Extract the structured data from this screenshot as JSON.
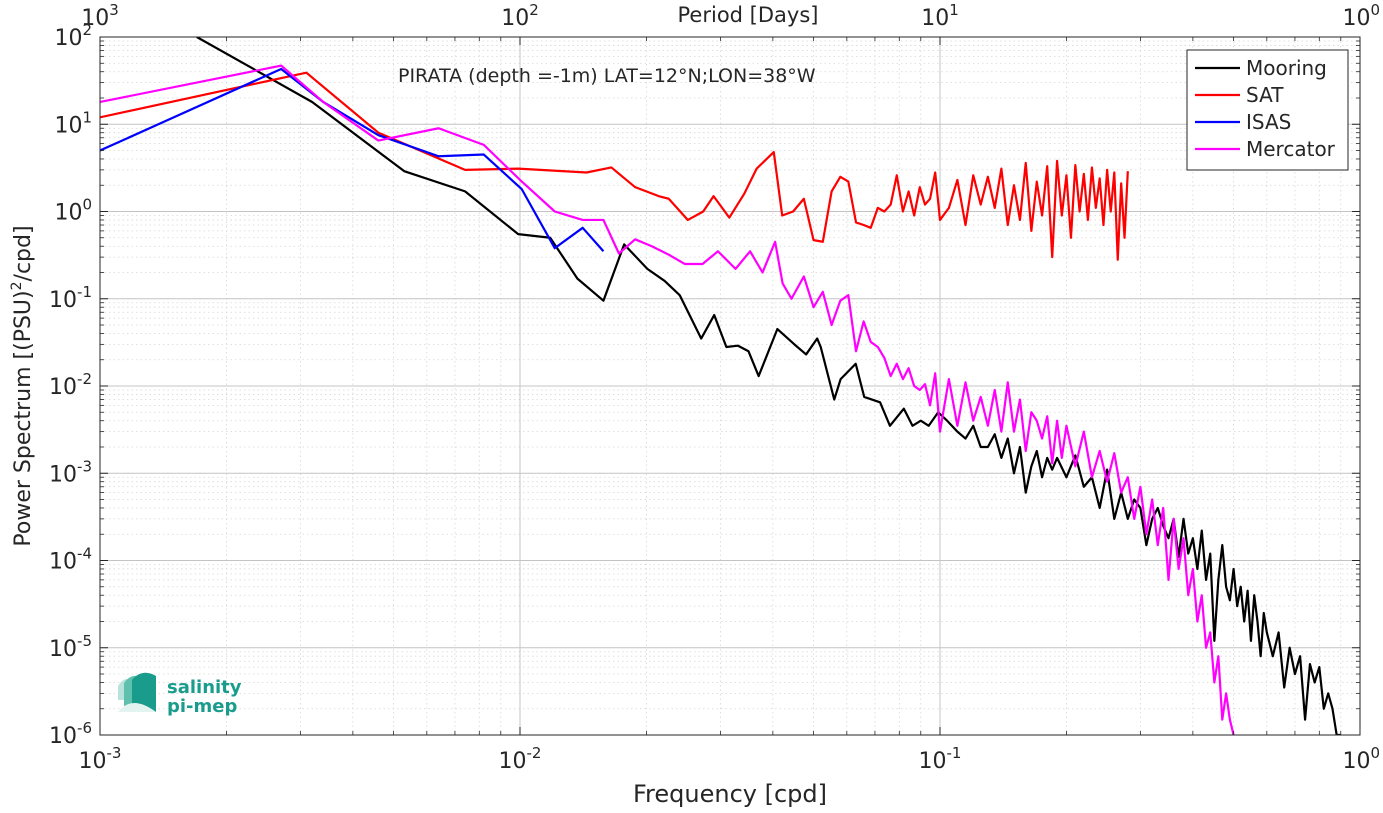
{
  "chart_data": {
    "type": "line",
    "title": "PIRATA (depth =-1m) LAT=12°N;LON=38°W",
    "xlabel": "Frequency [cpd]",
    "ylabel_main": "Power Spectrum [(PSU)",
    "ylabel_sup": "2",
    "ylabel_tail": "/cpd]",
    "top_xlabel": "Period [Days]",
    "x_scale": "log",
    "y_scale": "log",
    "xlim": [
      0.001,
      1
    ],
    "ylim": [
      1e-06,
      100
    ],
    "grid": true,
    "legend_position": "top-right",
    "x_ticks": [
      {
        "value": 0.001,
        "base": "10",
        "exp": "-3"
      },
      {
        "value": 0.01,
        "base": "10",
        "exp": "-2"
      },
      {
        "value": 0.1,
        "base": "10",
        "exp": "-1"
      },
      {
        "value": 1,
        "base": "10",
        "exp": "0"
      }
    ],
    "top_ticks": [
      {
        "frequency": 0.001,
        "base": "10",
        "exp": "3"
      },
      {
        "frequency": 0.01,
        "base": "10",
        "exp": "2"
      },
      {
        "frequency": 0.1,
        "base": "10",
        "exp": "1"
      },
      {
        "frequency": 1,
        "base": "10",
        "exp": "0"
      }
    ],
    "y_ticks": [
      {
        "value": 100,
        "base": "10",
        "exp": "2"
      },
      {
        "value": 10,
        "base": "10",
        "exp": "1"
      },
      {
        "value": 1,
        "base": "10",
        "exp": "0"
      },
      {
        "value": 0.1,
        "base": "10",
        "exp": "-1"
      },
      {
        "value": 0.01,
        "base": "10",
        "exp": "-2"
      },
      {
        "value": 0.001,
        "base": "10",
        "exp": "-3"
      },
      {
        "value": 0.0001,
        "base": "10",
        "exp": "-4"
      },
      {
        "value": 1e-05,
        "base": "10",
        "exp": "-5"
      },
      {
        "value": 1e-06,
        "base": "10",
        "exp": "-6"
      }
    ],
    "series": [
      {
        "name": "Mooring",
        "color": "#000000",
        "x": [
          0.0017,
          0.0032,
          0.0053,
          0.0074,
          0.0099,
          0.0118,
          0.0137,
          0.0158,
          0.0177,
          0.0201,
          0.0221,
          0.024,
          0.027,
          0.029,
          0.031,
          0.033,
          0.035,
          0.037,
          0.041,
          0.045,
          0.048,
          0.051,
          0.052,
          0.056,
          0.058,
          0.063,
          0.066,
          0.072,
          0.076,
          0.082,
          0.086,
          0.09,
          0.094,
          0.099,
          0.104,
          0.11,
          0.115,
          0.12,
          0.125,
          0.13,
          0.135,
          0.14,
          0.145,
          0.15,
          0.155,
          0.16,
          0.165,
          0.17,
          0.175,
          0.18,
          0.185,
          0.19,
          0.2,
          0.21,
          0.22,
          0.23,
          0.24,
          0.25,
          0.26,
          0.27,
          0.28,
          0.29,
          0.3,
          0.31,
          0.32,
          0.33,
          0.34,
          0.35,
          0.36,
          0.37,
          0.38,
          0.39,
          0.4,
          0.41,
          0.42,
          0.43,
          0.44,
          0.45,
          0.46,
          0.47,
          0.48,
          0.49,
          0.5,
          0.51,
          0.52,
          0.53,
          0.54,
          0.55,
          0.56,
          0.57,
          0.58,
          0.59,
          0.6,
          0.62,
          0.64,
          0.66,
          0.68,
          0.7,
          0.72,
          0.74,
          0.76,
          0.78,
          0.8,
          0.82,
          0.84,
          0.86,
          0.88,
          0.9
        ],
        "y": [
          100,
          18,
          2.9,
          1.7,
          0.55,
          0.5,
          0.17,
          0.095,
          0.42,
          0.22,
          0.16,
          0.11,
          0.035,
          0.065,
          0.028,
          0.029,
          0.025,
          0.013,
          0.045,
          0.03,
          0.023,
          0.035,
          0.028,
          0.007,
          0.012,
          0.018,
          0.0075,
          0.0065,
          0.0035,
          0.0055,
          0.0035,
          0.004,
          0.0035,
          0.005,
          0.004,
          0.003,
          0.0025,
          0.0035,
          0.002,
          0.002,
          0.0028,
          0.0015,
          0.0025,
          0.001,
          0.002,
          0.0006,
          0.0012,
          0.0018,
          0.0009,
          0.0015,
          0.0011,
          0.0015,
          0.0009,
          0.0016,
          0.0007,
          0.0009,
          0.0004,
          0.0011,
          0.0003,
          0.0006,
          0.0003,
          0.0005,
          0.0004,
          0.00015,
          0.0003,
          0.0004,
          0.00025,
          0.00018,
          0.0003,
          0.00011,
          0.0003,
          0.00012,
          0.00018,
          8e-05,
          0.00022,
          6e-05,
          0.00012,
          1.2e-05,
          6e-05,
          0.00015,
          5e-05,
          3.5e-05,
          8e-05,
          3e-05,
          5e-05,
          2e-05,
          4.5e-05,
          1.2e-05,
          4e-05,
          2e-05,
          8e-06,
          2.5e-05,
          1.5e-05,
          8e-06,
          1.5e-05,
          3.5e-06,
          1e-05,
          5e-06,
          8e-06,
          1.5e-06,
          6.5e-06,
          4e-06,
          6e-06,
          2e-06,
          3e-06,
          2e-06,
          1e-06,
          1e-06
        ]
      },
      {
        "name": "SAT",
        "color": "#ff0000",
        "x": [
          0.001,
          0.0031,
          0.0046,
          0.0074,
          0.0099,
          0.0144,
          0.0165,
          0.0188,
          0.0214,
          0.0226,
          0.0251,
          0.0273,
          0.0289,
          0.0315,
          0.0342,
          0.0366,
          0.0402,
          0.0421,
          0.0447,
          0.0474,
          0.05,
          0.0526,
          0.0552,
          0.0579,
          0.0605,
          0.0631,
          0.0658,
          0.0684,
          0.0711,
          0.0737,
          0.0763,
          0.0789,
          0.0816,
          0.0842,
          0.0868,
          0.0895,
          0.0921,
          0.0947,
          0.0974,
          0.1,
          0.105,
          0.11,
          0.115,
          0.12,
          0.125,
          0.13,
          0.135,
          0.14,
          0.145,
          0.15,
          0.155,
          0.16,
          0.165,
          0.17,
          0.175,
          0.18,
          0.185,
          0.19,
          0.195,
          0.2,
          0.205,
          0.21,
          0.215,
          0.22,
          0.225,
          0.23,
          0.235,
          0.24,
          0.245,
          0.25,
          0.255,
          0.26,
          0.265,
          0.27,
          0.275,
          0.28
        ],
        "y": [
          12,
          39,
          8,
          3,
          3.1,
          2.8,
          3.2,
          1.9,
          1.5,
          1.4,
          0.8,
          1.0,
          1.5,
          0.85,
          1.6,
          3.1,
          4.8,
          0.9,
          1.0,
          1.4,
          0.47,
          0.45,
          1.7,
          2.5,
          2.2,
          0.75,
          0.7,
          0.65,
          1.1,
          1.0,
          1.2,
          2.6,
          1.0,
          1.7,
          0.9,
          1.9,
          1.2,
          1.4,
          2.8,
          0.8,
          1.1,
          2.3,
          0.7,
          2.6,
          1.2,
          2.5,
          1.1,
          3.1,
          0.7,
          2.0,
          0.8,
          3.6,
          0.6,
          2.2,
          0.9,
          3.3,
          0.3,
          3.8,
          0.9,
          2.6,
          0.5,
          3.4,
          1.0,
          2.7,
          0.8,
          3.2,
          1.1,
          2.4,
          0.7,
          3.0,
          1.0,
          2.8,
          0.28,
          2.1,
          0.5,
          2.9
        ]
      },
      {
        "name": "ISAS",
        "color": "#0000ff",
        "x": [
          0.001,
          0.0027,
          0.0034,
          0.0046,
          0.0064,
          0.0082,
          0.0101,
          0.0121,
          0.0141,
          0.0158
        ],
        "y": [
          5,
          43,
          18,
          7.5,
          4.3,
          4.5,
          1.8,
          0.38,
          0.65,
          0.35
        ]
      },
      {
        "name": "Mercator",
        "color": "#ff00ff",
        "x": [
          0.001,
          0.0027,
          0.0034,
          0.0046,
          0.0064,
          0.0082,
          0.0101,
          0.0121,
          0.0141,
          0.0158,
          0.0172,
          0.0188,
          0.0206,
          0.0226,
          0.0247,
          0.0272,
          0.0296,
          0.0326,
          0.0353,
          0.0378,
          0.0405,
          0.0422,
          0.0443,
          0.0474,
          0.05,
          0.0526,
          0.0552,
          0.0579,
          0.0605,
          0.0631,
          0.0658,
          0.0684,
          0.0711,
          0.0737,
          0.0763,
          0.0789,
          0.0816,
          0.0842,
          0.0868,
          0.0895,
          0.0921,
          0.0947,
          0.0974,
          0.1,
          0.105,
          0.11,
          0.115,
          0.12,
          0.125,
          0.13,
          0.135,
          0.14,
          0.145,
          0.15,
          0.155,
          0.16,
          0.165,
          0.17,
          0.175,
          0.18,
          0.185,
          0.19,
          0.195,
          0.2,
          0.21,
          0.22,
          0.23,
          0.24,
          0.25,
          0.26,
          0.27,
          0.28,
          0.29,
          0.3,
          0.31,
          0.32,
          0.33,
          0.34,
          0.35,
          0.36,
          0.37,
          0.38,
          0.39,
          0.4,
          0.41,
          0.42,
          0.43,
          0.44,
          0.45,
          0.46,
          0.47,
          0.48,
          0.49,
          0.5
        ],
        "y": [
          18,
          47,
          18,
          6.5,
          9,
          5.8,
          2.2,
          1.0,
          0.8,
          0.8,
          0.33,
          0.48,
          0.4,
          0.32,
          0.25,
          0.25,
          0.35,
          0.22,
          0.35,
          0.2,
          0.45,
          0.15,
          0.1,
          0.18,
          0.08,
          0.12,
          0.05,
          0.095,
          0.11,
          0.025,
          0.055,
          0.032,
          0.028,
          0.021,
          0.013,
          0.018,
          0.012,
          0.016,
          0.01,
          0.009,
          0.0105,
          0.006,
          0.014,
          0.003,
          0.012,
          0.0035,
          0.011,
          0.004,
          0.0075,
          0.0035,
          0.009,
          0.003,
          0.011,
          0.003,
          0.007,
          0.0018,
          0.005,
          0.004,
          0.0025,
          0.0045,
          0.0013,
          0.004,
          0.0015,
          0.0035,
          0.0012,
          0.003,
          0.0009,
          0.0018,
          0.0008,
          0.0017,
          0.0006,
          0.0009,
          0.0003,
          0.0007,
          0.0002,
          0.0005,
          0.00015,
          0.0004,
          6e-05,
          0.0003,
          8e-05,
          0.00018,
          4e-05,
          8e-05,
          2e-05,
          4e-05,
          1e-05,
          1.5e-05,
          4e-06,
          8e-06,
          1.5e-06,
          3e-06,
          1.5e-06,
          1e-06
        ]
      }
    ]
  },
  "logo": {
    "line1": "salinity",
    "line2": "pi-mep",
    "color": "#1a9c8c"
  }
}
